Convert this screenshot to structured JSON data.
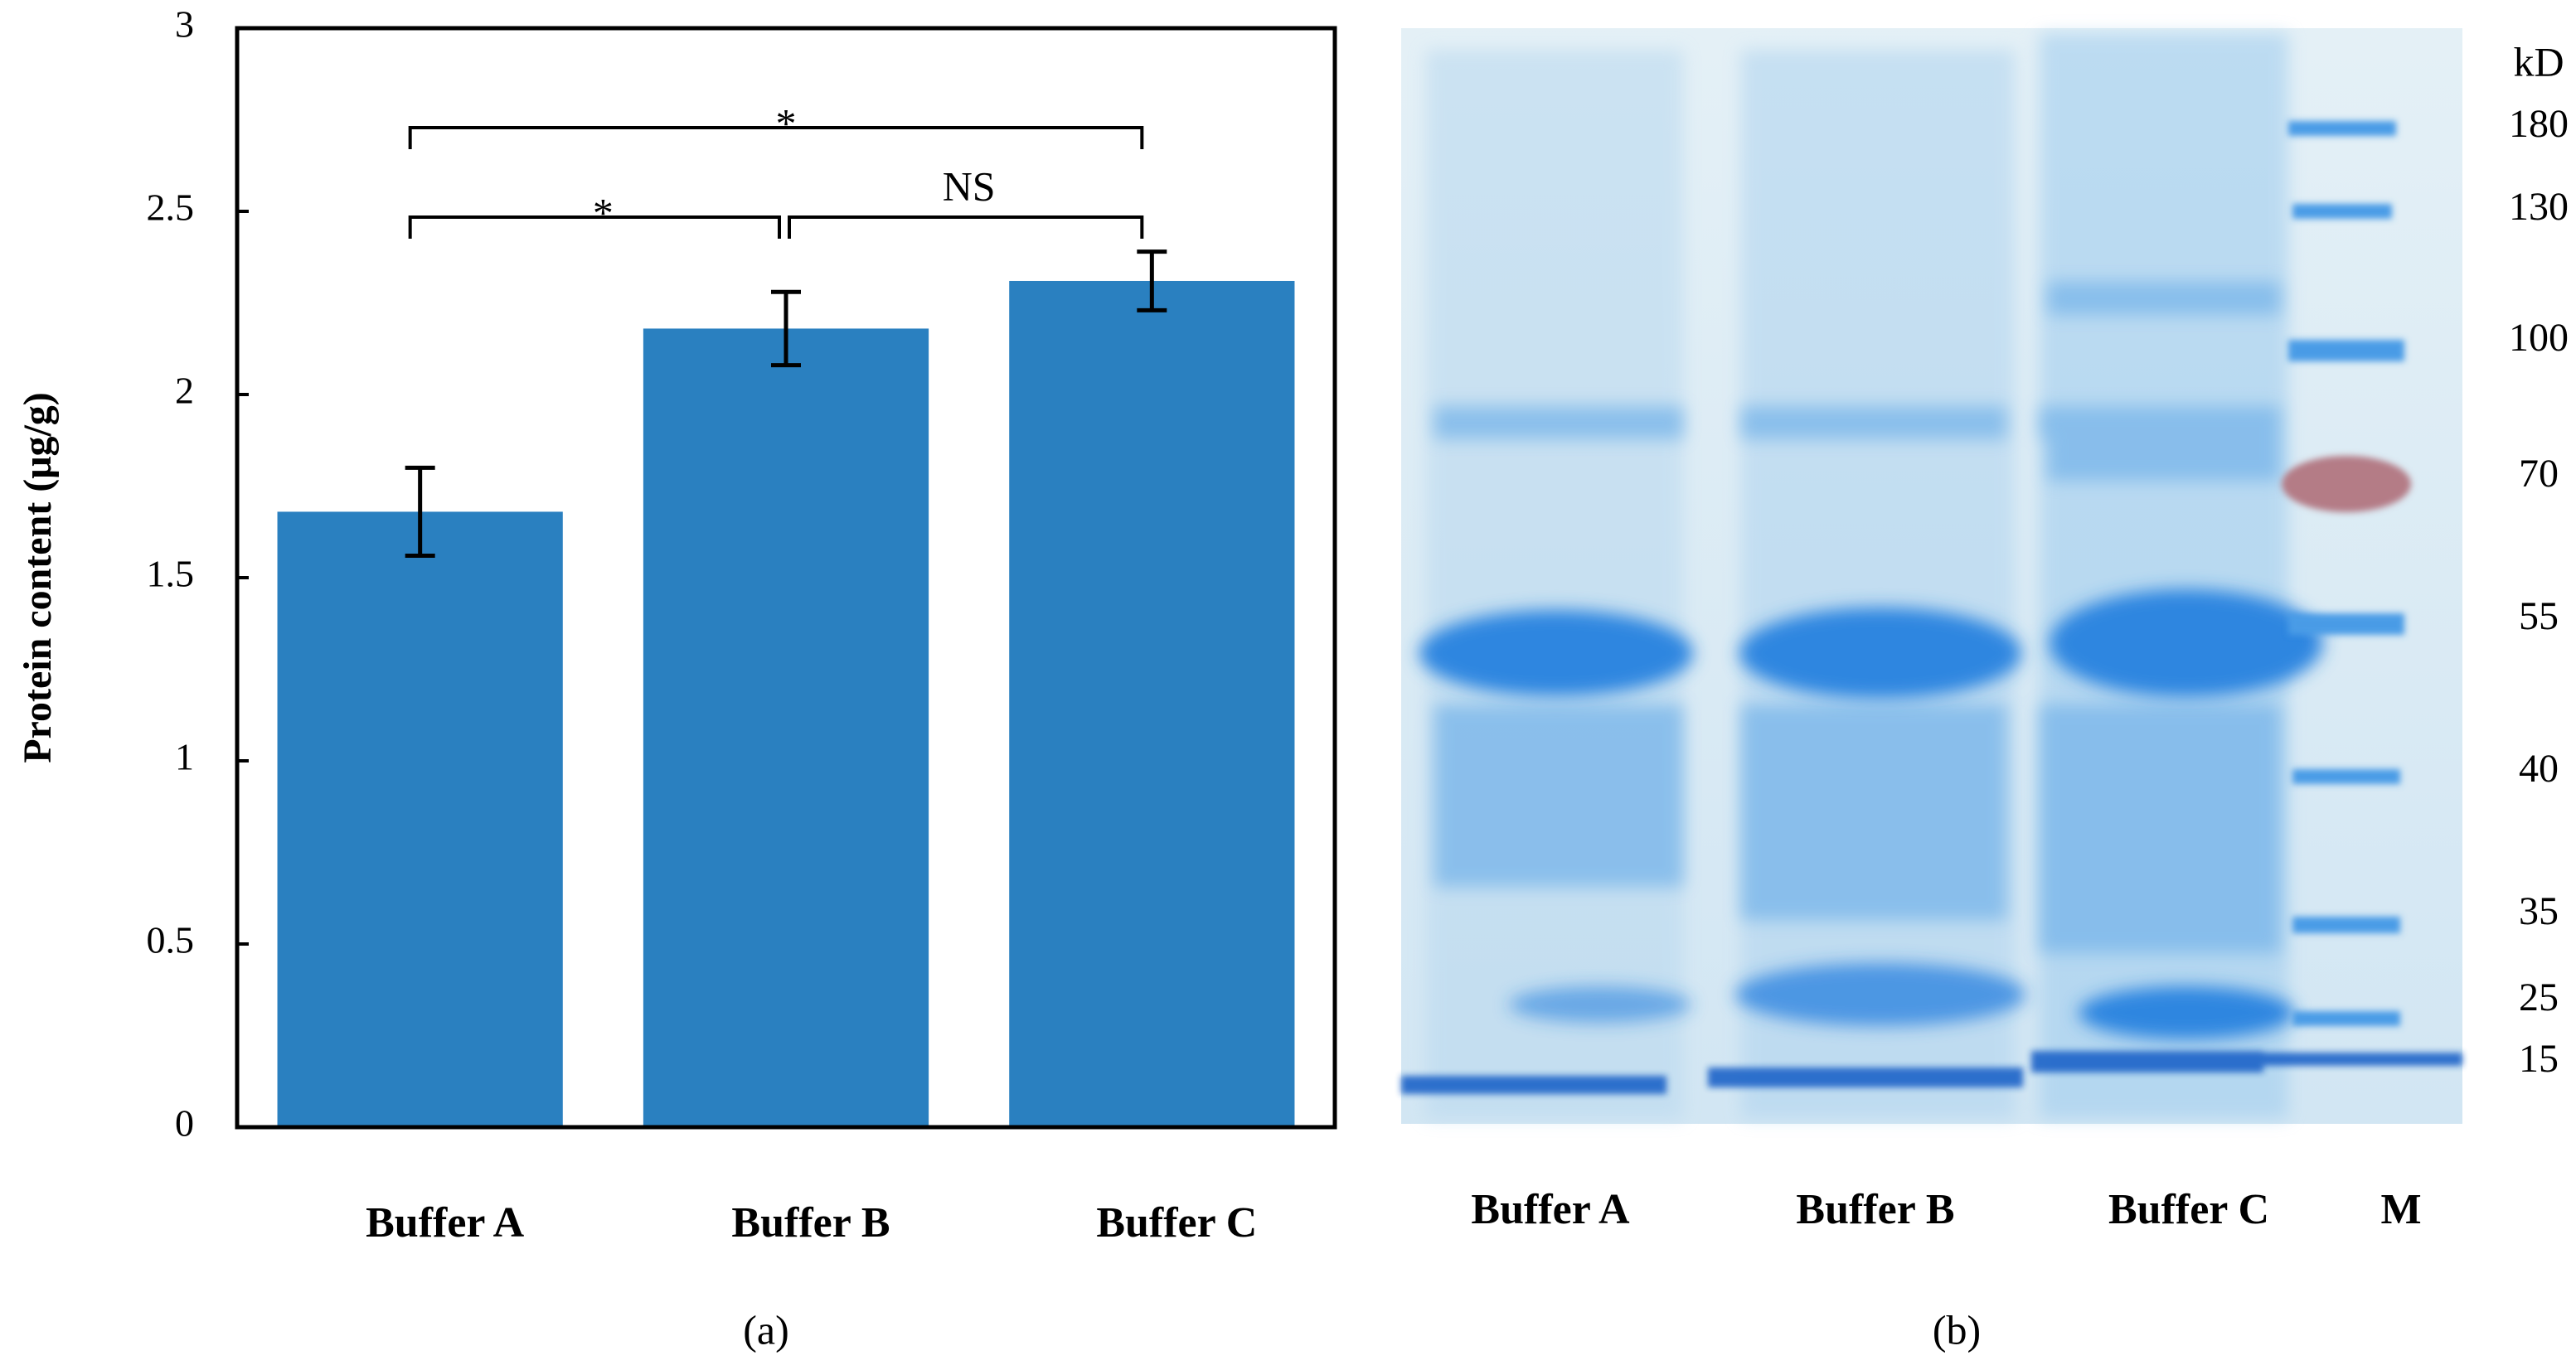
{
  "chart_data": {
    "type": "bar",
    "ylabel": "Protein content  (μg/g)",
    "categories": [
      "Buffer A",
      "Buffer B",
      "Buffer C"
    ],
    "values": [
      1.68,
      2.18,
      2.31
    ],
    "errors": [
      0.12,
      0.1,
      0.08
    ],
    "color": "#2a80c0",
    "ylim": [
      0,
      3
    ],
    "yticks": [
      0,
      0.5,
      1,
      1.5,
      2,
      2.5,
      3
    ],
    "annotations": [
      "*",
      "*",
      "NS"
    ],
    "panel_label": "(a)"
  },
  "gel": {
    "lanes": [
      "Buffer A",
      "Buffer B",
      "Buffer C",
      "M"
    ],
    "unit": "kD",
    "markers": [
      "180",
      "130",
      "100",
      "70",
      "55",
      "40",
      "35",
      "25",
      "15"
    ],
    "panel_label": "(b)"
  }
}
